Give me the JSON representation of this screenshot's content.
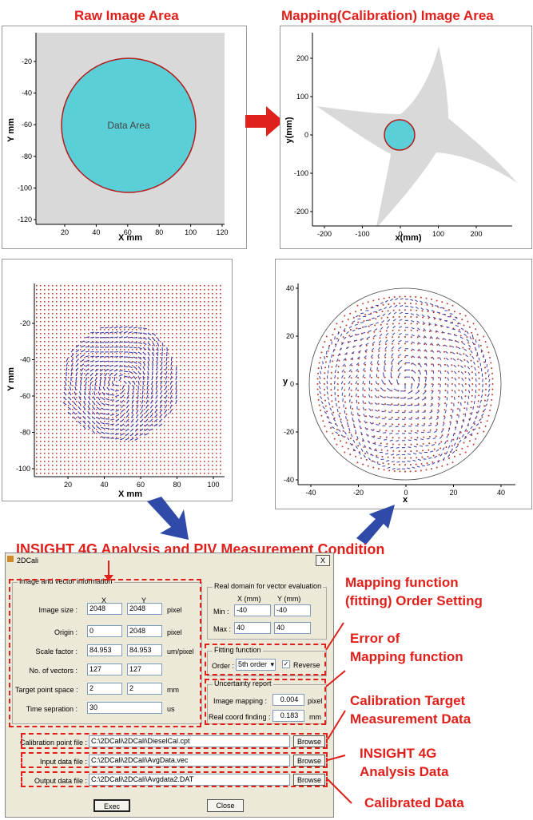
{
  "titles": {
    "raw": "Raw Image Area",
    "mapping": "Mapping(Calibration) Image Area",
    "insight": "INSIGHT 4G Analysis and PIV Measurement Condition"
  },
  "plot_raw": {
    "ylabel": "Y mm",
    "xlabel": "X mm",
    "center_label": "Data Area",
    "xticks": [
      "20",
      "40",
      "60",
      "80",
      "100",
      "120"
    ],
    "yticks": [
      "-20",
      "-40",
      "-60",
      "-80",
      "-100",
      "-120"
    ]
  },
  "plot_map": {
    "ylabel": "y(mm)",
    "xlabel": "x(mm)",
    "xticks": [
      "-200",
      "-100",
      "0",
      "100",
      "200"
    ],
    "yticks": [
      "200",
      "100",
      "0",
      "-100",
      "-200"
    ]
  },
  "plot_vec_raw": {
    "ylabel": "Y mm",
    "xlabel": "X mm",
    "xticks": [
      "20",
      "40",
      "60",
      "80",
      "100"
    ],
    "yticks": [
      "-20",
      "-40",
      "-60",
      "-80",
      "-100"
    ]
  },
  "plot_vec_cal": {
    "ylabel": "y",
    "xlabel": "x",
    "xticks": [
      "-40",
      "-20",
      "0",
      "20",
      "40"
    ],
    "yticks": [
      "40",
      "20",
      "0",
      "-20",
      "-40"
    ]
  },
  "chart_data": [
    {
      "type": "scatter",
      "title": "Raw Image Area",
      "xlabel": "X mm",
      "ylabel": "Y mm",
      "xlim": [
        0,
        120
      ],
      "ylim": [
        -122,
        -5
      ],
      "annotations": [
        "Data Area"
      ]
    },
    {
      "type": "scatter",
      "title": "Mapping(Calibration) Image Area",
      "xlabel": "x(mm)",
      "ylabel": "y(mm)",
      "xlim": [
        -230,
        270
      ],
      "ylim": [
        -235,
        235
      ]
    },
    {
      "type": "scatter",
      "xlabel": "X mm",
      "ylabel": "Y mm",
      "xlim": [
        5,
        108
      ],
      "ylim": [
        -107,
        -5
      ]
    },
    {
      "type": "scatter",
      "xlabel": "x",
      "ylabel": "y",
      "xlim": [
        -44,
        44
      ],
      "ylim": [
        -42,
        42
      ]
    }
  ],
  "dialog": {
    "title": "2DCali",
    "close": "X",
    "group_image": "Image and vector information",
    "col_x": "X",
    "col_y": "Y",
    "rows": [
      {
        "label": "Image size :",
        "x": "2048",
        "y": "2048",
        "unit": "pixel"
      },
      {
        "label": "Origin :",
        "x": "0",
        "y": "2048",
        "unit": "pixel"
      },
      {
        "label": "Scale factor :",
        "x": "84.953",
        "y": "84.953",
        "unit": "um/pixel"
      },
      {
        "label": "No. of vectors :",
        "x": "127",
        "y": "127",
        "unit": ""
      },
      {
        "label": "Target point space :",
        "x": "2",
        "y": "2",
        "unit": "mm"
      }
    ],
    "time_label": "Time sepration :",
    "time_value": "30",
    "time_unit": "us",
    "group_domain": "Real domain for vector evaluation",
    "dom_x": "X (mm)",
    "dom_y": "Y (mm)",
    "min_label": "Min :",
    "min_x": "-40",
    "min_y": "-40",
    "max_label": "Max :",
    "max_x": "40",
    "max_y": "40",
    "group_fit": "Fitting function",
    "order_label": "Order :",
    "order_value": "5th order",
    "reverse_label": "Reverse",
    "group_unc": "Uncertainty report",
    "img_map_label": "Image mapping :",
    "img_map_value": "0.004",
    "img_map_unit": "pixel",
    "real_label": "Real coord finding :",
    "real_value": "0.183",
    "real_unit": "mm",
    "files": [
      {
        "label": "Calibration point file :",
        "value": "C:\\2DCali\\2DCali\\DieselCal.cpt",
        "button": "Browse"
      },
      {
        "label": "Input data file :",
        "value": "C:\\2DCali\\2DCali\\AvgData.vec",
        "button": "Browse"
      },
      {
        "label": "Output data file :",
        "value": "C:\\2DCali\\2DCali\\Avgdata2.DAT",
        "button": "Browse"
      }
    ],
    "exec": "Exec",
    "close_btn": "Close"
  },
  "annotations": {
    "mapping_order": [
      "Mapping function",
      "(fitting) Order Setting"
    ],
    "error": [
      "Error of",
      "Mapping function"
    ],
    "target": [
      "Calibration Target",
      "Measurement Data"
    ],
    "insight": [
      "INSIGHT 4G",
      "Analysis Data"
    ],
    "calibrated": [
      "Calibrated Data"
    ]
  },
  "colors": {
    "accent": "#e0201b",
    "arrow": "#2f4aa8",
    "circle_fill": "#5bcfd8",
    "gray": "#d9d9d9",
    "vector": "#3b3bb0",
    "dot": "#c0392b"
  }
}
